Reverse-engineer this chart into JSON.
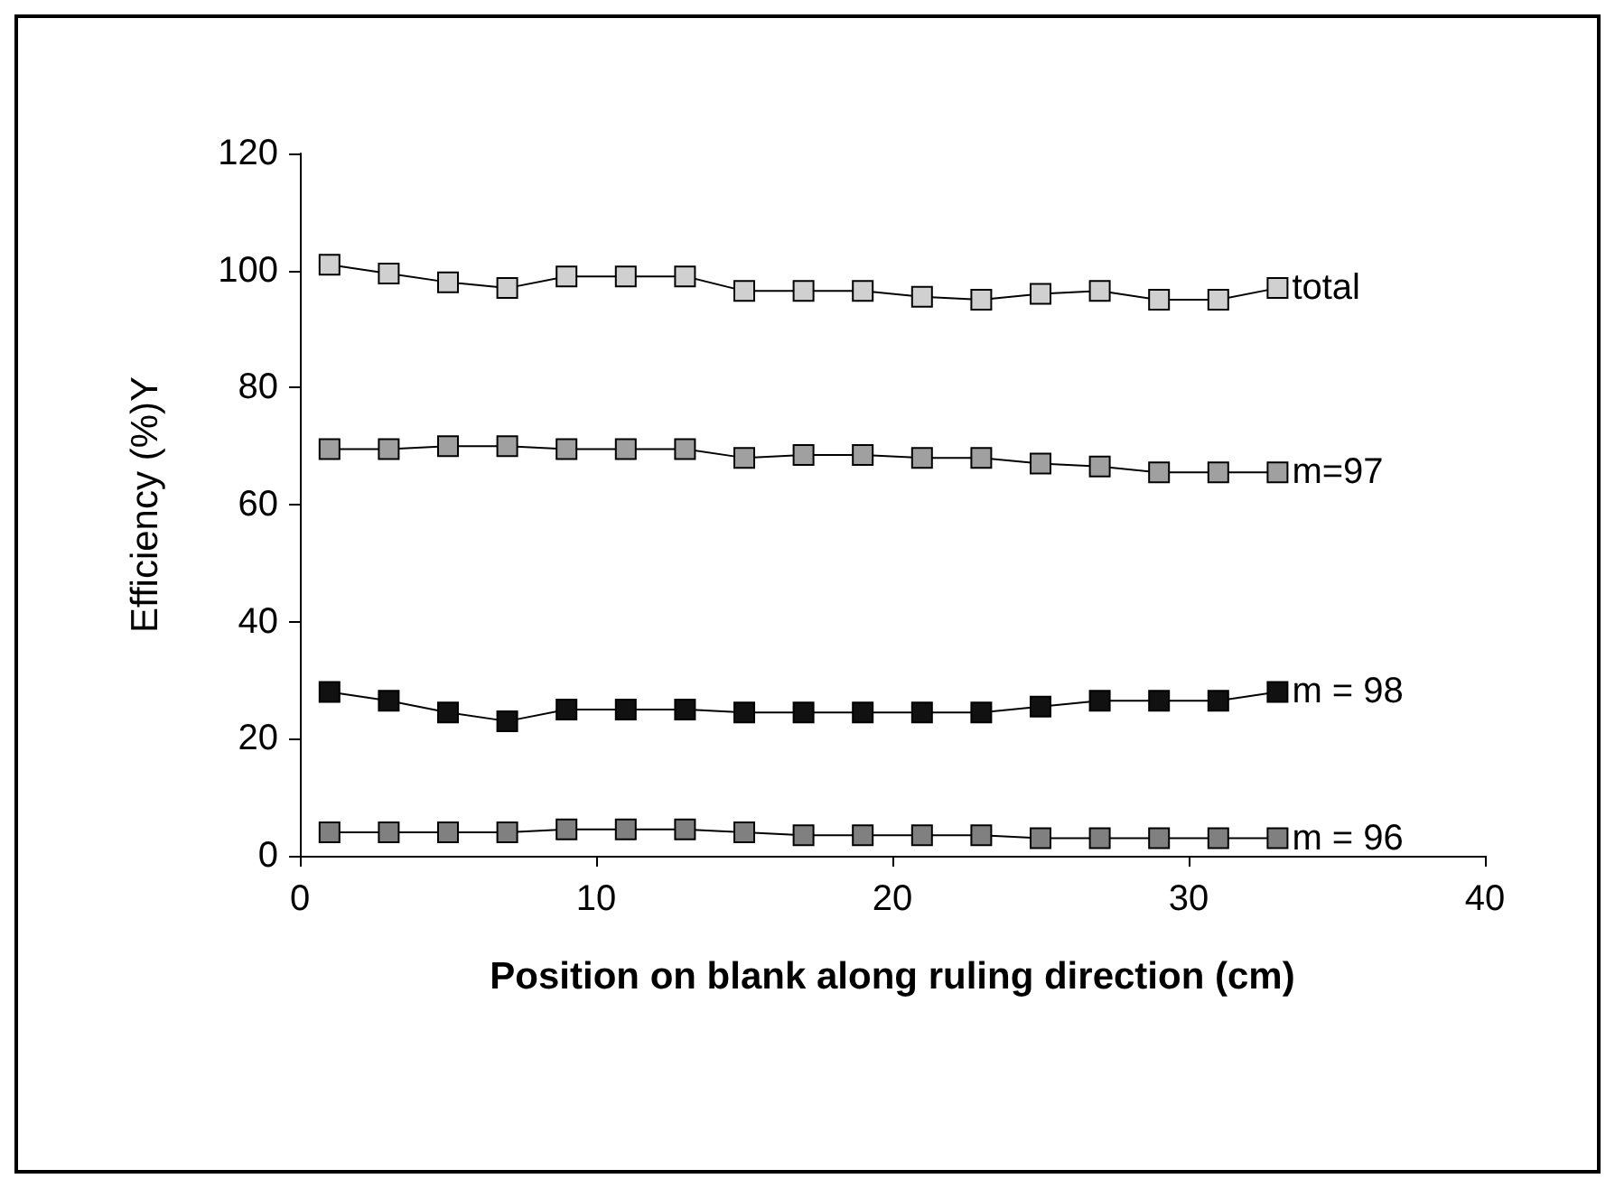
{
  "chart_data": {
    "type": "line",
    "xlabel": "Position on blank along ruling direction (cm)",
    "ylabel": "Efficiency (%)Y",
    "x": [
      1,
      3,
      5,
      7,
      9,
      11,
      13,
      15,
      17,
      19,
      21,
      23,
      25,
      27,
      29,
      31,
      33
    ],
    "series": [
      {
        "name": "total",
        "color": "#d0d0d0",
        "values": [
          101,
          99.5,
          98,
          97,
          99,
          99,
          99,
          96.5,
          96.5,
          96.5,
          95.5,
          95,
          96,
          96.5,
          95,
          95,
          97
        ]
      },
      {
        "name": "m=97",
        "color": "#a0a0a0",
        "values": [
          69.5,
          69.5,
          70,
          70,
          69.5,
          69.5,
          69.5,
          68,
          68.5,
          68.5,
          68,
          68,
          67,
          66.5,
          65.5,
          65.5,
          65.5
        ]
      },
      {
        "name": "m = 98",
        "color": "#111111",
        "values": [
          28,
          26.5,
          24.5,
          23,
          25,
          25,
          25,
          24.5,
          24.5,
          24.5,
          24.5,
          24.5,
          25.5,
          26.5,
          26.5,
          26.5,
          28
        ]
      },
      {
        "name": "m = 96",
        "color": "#808080",
        "values": [
          4,
          4,
          4,
          4,
          4.5,
          4.5,
          4.5,
          4,
          3.5,
          3.5,
          3.5,
          3.5,
          3,
          3,
          3,
          3,
          3
        ]
      }
    ],
    "xlim": [
      0,
      40
    ],
    "xticks": [
      0,
      10,
      20,
      30,
      40
    ],
    "ylim": [
      0,
      120
    ],
    "yticks": [
      0,
      20,
      40,
      60,
      80,
      100,
      120
    ],
    "grid": false,
    "legend": false,
    "marker": "square",
    "line_style": "solid"
  }
}
